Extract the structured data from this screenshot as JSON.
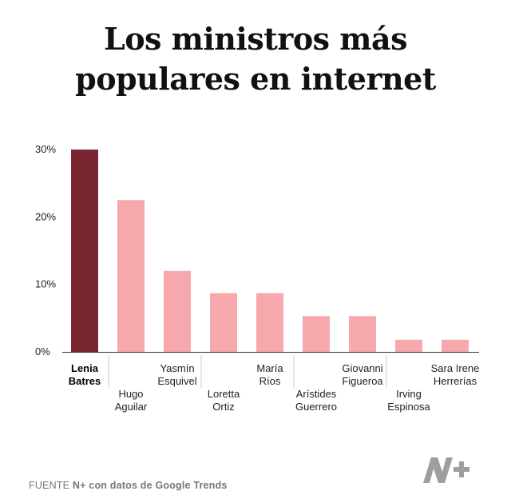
{
  "title_lines": [
    "Los ministros más",
    "populares en internet"
  ],
  "source": {
    "prefix": "FUENTE",
    "text": "N+ con datos de Google Trends"
  },
  "colors": {
    "highlight": "#7a2630",
    "bar": "#f7a8ad",
    "axis": "#333333",
    "leader": "#cccccc",
    "logo": "#9e9e9e"
  },
  "logo": {
    "icon": "nplus-logo-icon"
  },
  "chart_data": {
    "type": "bar",
    "title": "Los ministros más populares en internet",
    "xlabel": "",
    "ylabel": "",
    "ylim": [
      0,
      30
    ],
    "yticks": [
      {
        "value": 0,
        "label": "0%"
      },
      {
        "value": 10,
        "label": "10%"
      },
      {
        "value": 20,
        "label": "20%"
      },
      {
        "value": 30,
        "label": "30%"
      }
    ],
    "grid": false,
    "categories": [
      {
        "lines": [
          "Lenia",
          "Batres"
        ],
        "highlight": true
      },
      {
        "lines": [
          "Hugo",
          "Aguilar"
        ],
        "highlight": false
      },
      {
        "lines": [
          "Yasmín",
          "Esquivel"
        ],
        "highlight": false
      },
      {
        "lines": [
          "Loretta",
          "Ortiz"
        ],
        "highlight": false
      },
      {
        "lines": [
          "María",
          "Ríos"
        ],
        "highlight": false
      },
      {
        "lines": [
          "Arístides",
          "Guerrero"
        ],
        "highlight": false
      },
      {
        "lines": [
          "Giovanni",
          "Figueroa"
        ],
        "highlight": false
      },
      {
        "lines": [
          "Irving",
          "Espinosa"
        ],
        "highlight": false
      },
      {
        "lines": [
          "Sara Irene",
          "Herrerías"
        ],
        "highlight": false
      }
    ],
    "values": [
      30,
      22.5,
      12,
      8.7,
      8.7,
      5.3,
      5.3,
      1.8,
      1.8
    ]
  }
}
